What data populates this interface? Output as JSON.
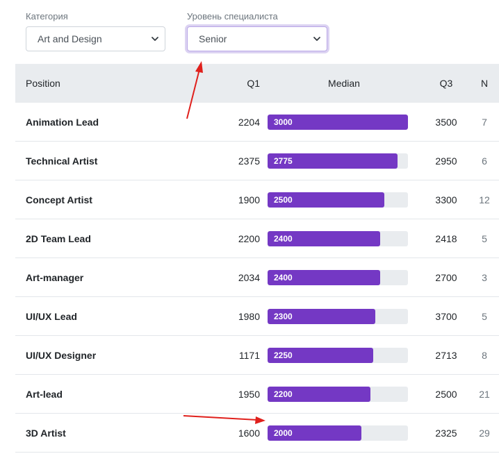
{
  "filters": {
    "category": {
      "label": "Категория",
      "value": "Art and Design"
    },
    "level": {
      "label": "Уровень специалиста",
      "value": "Senior"
    }
  },
  "table": {
    "headers": {
      "position": "Position",
      "q1": "Q1",
      "median": "Median",
      "q3": "Q3",
      "n": "N"
    },
    "max_median": 3000,
    "rows": [
      {
        "position": "Animation Lead",
        "q1": "2204",
        "median": 3000,
        "median_label": "3000",
        "q3": "3500",
        "n": "7"
      },
      {
        "position": "Technical Artist",
        "q1": "2375",
        "median": 2775,
        "median_label": "2775",
        "q3": "2950",
        "n": "6"
      },
      {
        "position": "Concept Artist",
        "q1": "1900",
        "median": 2500,
        "median_label": "2500",
        "q3": "3300",
        "n": "12"
      },
      {
        "position": "2D Team Lead",
        "q1": "2200",
        "median": 2400,
        "median_label": "2400",
        "q3": "2418",
        "n": "5"
      },
      {
        "position": "Art-manager",
        "q1": "2034",
        "median": 2400,
        "median_label": "2400",
        "q3": "2700",
        "n": "3"
      },
      {
        "position": "UI/UX Lead",
        "q1": "1980",
        "median": 2300,
        "median_label": "2300",
        "q3": "3700",
        "n": "5"
      },
      {
        "position": "UI/UX Designer",
        "q1": "1171",
        "median": 2250,
        "median_label": "2250",
        "q3": "2713",
        "n": "8"
      },
      {
        "position": "Art-lead",
        "q1": "1950",
        "median": 2200,
        "median_label": "2200",
        "q3": "2500",
        "n": "21"
      },
      {
        "position": "3D Artist",
        "q1": "1600",
        "median": 2000,
        "median_label": "2000",
        "q3": "2325",
        "n": "29"
      }
    ]
  },
  "colors": {
    "bar": "#7438c4",
    "track": "#e9ecef",
    "annotation_arrow": "#e0201c"
  },
  "annotations": {
    "arrow_icons": [
      "arrow-to-level-select",
      "arrow-to-3d-artist-bar"
    ]
  }
}
